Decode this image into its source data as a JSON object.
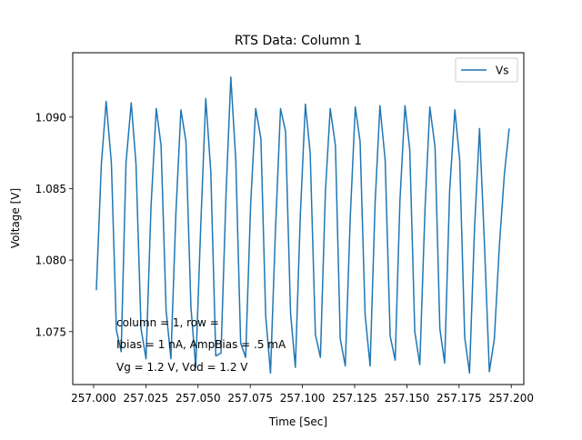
{
  "chart_data": {
    "type": "line",
    "title": "RTS Data: Column 1",
    "xlabel": "Time [Sec]",
    "ylabel": "Voltage [V]",
    "xlim": [
      256.99,
      257.206
    ],
    "ylim": [
      1.0713,
      1.0945
    ],
    "xticks": [
      257.0,
      257.025,
      257.05,
      257.075,
      257.1,
      257.125,
      257.15,
      257.175,
      257.2
    ],
    "xtick_labels": [
      "257.000",
      "257.025",
      "257.050",
      "257.075",
      "257.100",
      "257.125",
      "257.150",
      "257.175",
      "257.200"
    ],
    "yticks": [
      1.075,
      1.08,
      1.085,
      1.09
    ],
    "ytick_labels": [
      "1.075",
      "1.080",
      "1.085",
      "1.090"
    ],
    "grid": false,
    "legend_position": "upper-right",
    "annotations": [
      "column = 1, row =",
      "Ibias = 1 nA, AmpBias = .5 mA",
      "Vg = 1.2 V, Vdd = 1.2 V"
    ],
    "series": [
      {
        "name": "Vs",
        "color": "#1f77b4",
        "x": [
          257.0013,
          257.0037,
          257.006,
          257.0085,
          257.0109,
          257.0132,
          257.0155,
          257.018,
          257.0203,
          257.0227,
          257.0251,
          257.0275,
          257.03,
          257.0323,
          257.0347,
          257.037,
          257.0394,
          257.0418,
          257.0442,
          257.0466,
          257.0489,
          257.0513,
          257.0537,
          257.0561,
          257.0585,
          257.061,
          257.0634,
          257.0657,
          257.0681,
          257.0704,
          257.0728,
          257.0752,
          257.0776,
          257.0801,
          257.0824,
          257.0847,
          257.087,
          257.0895,
          257.0919,
          257.0943,
          257.0966,
          257.099,
          257.1014,
          257.1037,
          257.1062,
          257.1086,
          257.111,
          257.1133,
          257.1158,
          257.1181,
          257.1205,
          257.1229,
          257.1253,
          257.1276,
          257.13,
          257.1324,
          257.1348,
          257.1371,
          257.1396,
          257.142,
          257.1444,
          257.1467,
          257.1491,
          257.1514,
          257.1538,
          257.1562,
          257.1587,
          257.161,
          257.1635,
          257.1658,
          257.1681,
          257.1705,
          257.173,
          257.1753,
          257.1777,
          257.18,
          257.1824,
          257.1848,
          257.1872,
          257.1895,
          257.1919,
          257.1943,
          257.1967,
          257.199
        ],
        "values": [
          1.0779,
          1.0867,
          1.0911,
          1.0868,
          1.0751,
          1.0736,
          1.0868,
          1.091,
          1.0867,
          1.0752,
          1.0731,
          1.0838,
          1.0906,
          1.088,
          1.0765,
          1.0731,
          1.0833,
          1.0905,
          1.0883,
          1.0767,
          1.0725,
          1.0824,
          1.0913,
          1.0862,
          1.0733,
          1.0735,
          1.0846,
          1.0928,
          1.0869,
          1.0742,
          1.0732,
          1.0839,
          1.0906,
          1.0885,
          1.0761,
          1.0721,
          1.0818,
          1.0906,
          1.089,
          1.0763,
          1.0725,
          1.0832,
          1.0909,
          1.0875,
          1.0748,
          1.0732,
          1.0848,
          1.0906,
          1.088,
          1.0745,
          1.0726,
          1.083,
          1.0907,
          1.0883,
          1.0762,
          1.0726,
          1.084,
          1.0908,
          1.087,
          1.0747,
          1.073,
          1.0842,
          1.0908,
          1.0877,
          1.075,
          1.0727,
          1.0836,
          1.0907,
          1.0879,
          1.0752,
          1.0728,
          1.0849,
          1.0905,
          1.087,
          1.0746,
          1.0721,
          1.0822,
          1.0892,
          1.081,
          1.0722,
          1.0745,
          1.081,
          1.086,
          1.0892
        ]
      }
    ]
  }
}
